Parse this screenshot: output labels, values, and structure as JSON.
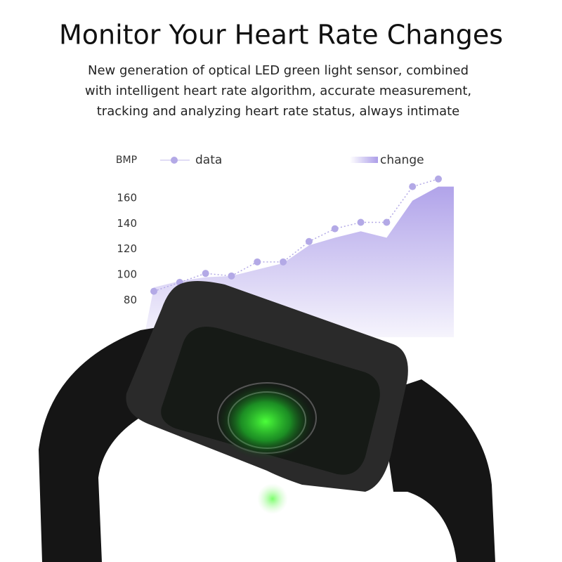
{
  "header": {
    "title": "Monitor Your Heart Rate Changes",
    "subtitle": [
      "New generation of optical LED green light sensor, combined",
      "with intelligent heart rate algorithm, accurate measurement,",
      "tracking and analyzing heart rate status, always intimate"
    ]
  },
  "chart_data": {
    "type": "line",
    "y_label": "BMP",
    "series": [
      {
        "name": "data",
        "color": "#b3a9e6",
        "values": [
          87,
          94,
          101,
          99,
          110,
          110,
          126,
          136,
          141,
          141,
          169,
          175
        ]
      },
      {
        "name": "change",
        "color": "#a393e6",
        "values": [
          90,
          95,
          98,
          99,
          104,
          109,
          123,
          129,
          134,
          129,
          158,
          169
        ]
      }
    ],
    "ylim": [
      80,
      175
    ],
    "yticks": [
      80,
      100,
      120,
      140,
      160
    ]
  }
}
